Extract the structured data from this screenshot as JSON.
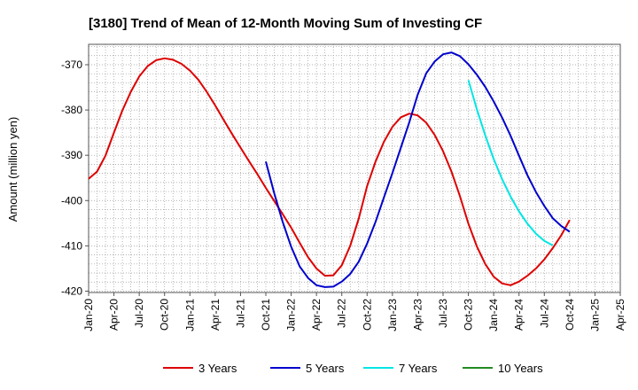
{
  "chart_data": {
    "type": "line",
    "title": "[3180]  Trend of Mean of 12-Month Moving Sum of Investing CF",
    "xlabel": "",
    "ylabel": "Amount (million yen)",
    "x_ticks": [
      "Jan-20",
      "Apr-20",
      "Jul-20",
      "Oct-20",
      "Jan-21",
      "Apr-21",
      "Jul-21",
      "Oct-21",
      "Jan-22",
      "Apr-22",
      "Jul-22",
      "Oct-22",
      "Jan-23",
      "Apr-23",
      "Jul-23",
      "Oct-23",
      "Jan-24",
      "Apr-24",
      "Jul-24",
      "Oct-24",
      "Jan-25",
      "Apr-25"
    ],
    "y_ticks": [
      -370,
      -380,
      -390,
      -400,
      -410,
      -420
    ],
    "ylim": [
      -420.3,
      -365.5
    ],
    "grid": true,
    "legend_position": "bottom",
    "series": [
      {
        "name": "3 Years",
        "color": "#dd0000",
        "start_month_index": 0,
        "values": [
          -395.2,
          -393.6,
          -390.1,
          -385.0,
          -380.1,
          -376.0,
          -372.6,
          -370.3,
          -369.0,
          -368.6,
          -368.9,
          -369.8,
          -371.3,
          -373.3,
          -376.0,
          -379.0,
          -382.2,
          -385.3,
          -388.3,
          -391.3,
          -394.2,
          -397.2,
          -400.1,
          -403.0,
          -406.0,
          -409.3,
          -412.5,
          -415.0,
          -416.6,
          -416.5,
          -414.3,
          -410.0,
          -404.0,
          -396.8,
          -391.4,
          -387.0,
          -383.7,
          -381.6,
          -380.8,
          -381.2,
          -382.8,
          -385.5,
          -389.1,
          -393.6,
          -399.0,
          -405.1,
          -410.1,
          -414.0,
          -416.8,
          -418.3,
          -418.7,
          -417.9,
          -416.6,
          -415.0,
          -413.0,
          -410.5,
          -407.7,
          -404.3
        ]
      },
      {
        "name": "5 Years",
        "color": "#0000cc",
        "start_month_index": 21,
        "values": [
          -391.4,
          -398.4,
          -404.7,
          -410.2,
          -414.5,
          -417.1,
          -418.7,
          -419.1,
          -419.0,
          -417.9,
          -416.2,
          -413.5,
          -409.5,
          -404.7,
          -399.3,
          -393.9,
          -388.3,
          -382.7,
          -376.6,
          -371.9,
          -369.3,
          -367.7,
          -367.3,
          -368.1,
          -369.9,
          -372.2,
          -374.9,
          -378.1,
          -381.7,
          -385.7,
          -390.1,
          -394.4,
          -398.1,
          -401.2,
          -403.9,
          -405.6,
          -406.9
        ]
      },
      {
        "name": "7 Years",
        "color": "#00e5e5",
        "start_month_index": 45,
        "values": [
          -373.4,
          -379.8,
          -385.6,
          -390.8,
          -395.3,
          -399.1,
          -402.4,
          -405.1,
          -407.3,
          -408.9,
          -409.9
        ]
      },
      {
        "name": "10 Years",
        "color": "#228b22",
        "start_month_index": null,
        "values": []
      }
    ]
  }
}
